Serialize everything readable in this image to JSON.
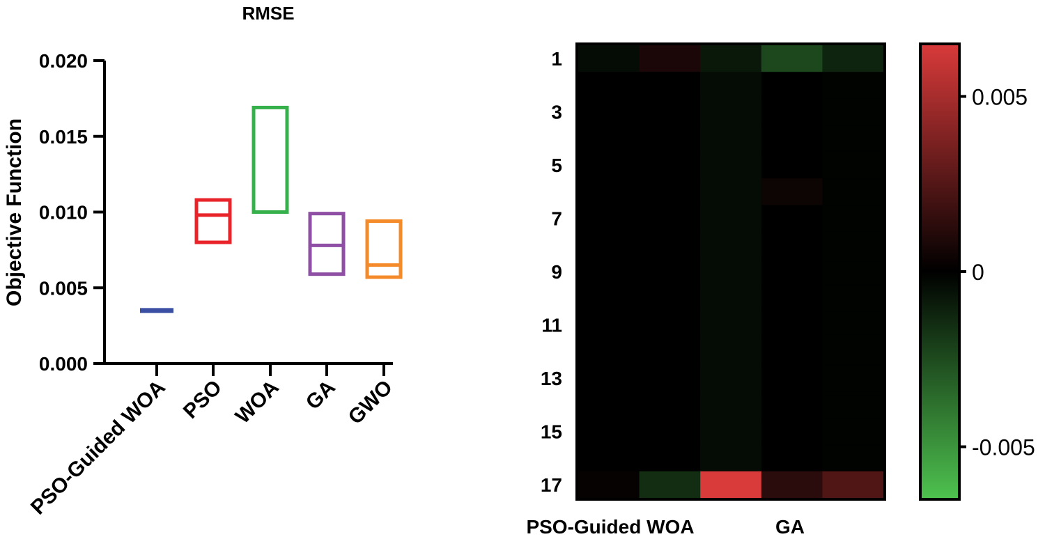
{
  "chart_data": [
    {
      "type": "floating-bar",
      "title": "RMSE",
      "ylabel": "Objective Function",
      "xlabel": "",
      "ylim": [
        0,
        0.02
      ],
      "yticks": [
        "0.000",
        "0.005",
        "0.010",
        "0.015",
        "0.020"
      ],
      "ytick_values": [
        0,
        0.005,
        0.01,
        0.015,
        0.02
      ],
      "categories": [
        "PSO-Guided WOA",
        "PSO",
        "WOA",
        "GA",
        "GWO"
      ],
      "colors": [
        "#3a4fa3",
        "#e8232a",
        "#35b04a",
        "#8e4fa5",
        "#f58a2a"
      ],
      "min": [
        0.0035,
        0.008,
        0.01,
        0.0059,
        0.0057
      ],
      "max": [
        0.0035,
        0.0108,
        0.0169,
        0.0099,
        0.0094
      ],
      "mean": [
        0.0035,
        0.0098,
        null,
        0.0078,
        0.0065
      ]
    },
    {
      "type": "heatmap",
      "title": "",
      "row_labels_shown": [
        "1",
        "3",
        "5",
        "7",
        "9",
        "11",
        "13",
        "15",
        "17"
      ],
      "rows": 17,
      "column_labels_shown": [
        "PSO-Guided WOA",
        "GA"
      ],
      "columns": 5,
      "colorbar": {
        "ticks": [
          "0.005",
          "0",
          "-0.005"
        ],
        "tick_values": [
          0.005,
          0,
          -0.005
        ],
        "range": [
          -0.0065,
          0.0065
        ],
        "low_color": "#4ec24f",
        "mid_color": "#000000",
        "high_color": "#d93a3a"
      },
      "values": [
        [
          -0.0004,
          0.0008,
          -0.0008,
          -0.0024,
          -0.0012
        ],
        [
          0,
          0,
          -0.0004,
          0,
          -0.0001
        ],
        [
          0,
          0,
          -0.0004,
          0,
          -0.0001
        ],
        [
          0,
          0,
          -0.0004,
          0,
          -0.0001
        ],
        [
          0,
          0,
          -0.0004,
          0,
          -0.0001
        ],
        [
          0,
          0,
          -0.0004,
          0.0004,
          -0.0001
        ],
        [
          0,
          0,
          -0.0004,
          0,
          -0.0001
        ],
        [
          0,
          0,
          -0.0004,
          0,
          -0.0001
        ],
        [
          0,
          0,
          -0.0004,
          0,
          -0.0001
        ],
        [
          0,
          0,
          -0.0004,
          0,
          -0.0001
        ],
        [
          0,
          0,
          -0.0004,
          0,
          -0.0001
        ],
        [
          0,
          0,
          -0.0004,
          0,
          -0.0001
        ],
        [
          0,
          0,
          -0.0004,
          0,
          -0.0001
        ],
        [
          0,
          0,
          -0.0004,
          0,
          -0.0001
        ],
        [
          0,
          0,
          -0.0004,
          0,
          -0.0001
        ],
        [
          0,
          0,
          -0.0004,
          0,
          -0.0001
        ],
        [
          0.0002,
          -0.0015,
          0.0065,
          0.0013,
          0.0024
        ]
      ]
    }
  ]
}
